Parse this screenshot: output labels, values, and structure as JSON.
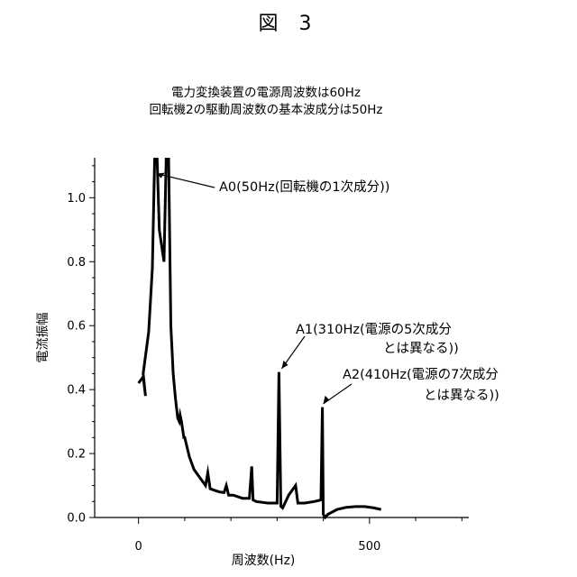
{
  "figure": {
    "title": "図 3",
    "conditions": [
      "電力変換装置の電源周波数は60Hz",
      "回転機2の駆動周波数の基本波成分は50Hz"
    ]
  },
  "chart_data": {
    "type": "line",
    "title": "",
    "xlabel": "周波数(Hz)",
    "ylabel": "電流振幅",
    "xlim": [
      -95,
      715
    ],
    "ylim": [
      0,
      1.125
    ],
    "x_ticks": [
      0,
      500
    ],
    "x_tick_labels": [
      "0",
      "500"
    ],
    "y_ticks": [
      0,
      0.2,
      0.4,
      0.6,
      0.8,
      1.0
    ],
    "y_tick_labels": [
      "0.0",
      "0.2",
      "0.4",
      "0.6",
      "0.8",
      "1.0"
    ],
    "grid": false,
    "series": [
      {
        "name": "",
        "color": "#000000",
        "x": [
          0,
          10,
          15,
          10,
          22,
          30,
          35,
          40,
          45,
          55,
          60,
          65,
          70,
          75,
          80,
          85,
          88,
          90,
          93,
          98,
          100,
          110,
          120,
          135,
          145,
          150,
          155,
          165,
          175,
          185,
          190,
          195,
          205,
          215,
          225,
          240,
          245,
          248,
          255,
          280,
          300,
          304,
          308,
          312,
          325,
          340,
          345,
          350,
          360,
          380,
          395,
          398,
          400,
          402,
          404,
          410,
          430,
          450,
          470,
          490,
          510,
          525
        ],
        "y": [
          0.42,
          0.44,
          0.38,
          0.45,
          0.58,
          0.78,
          1.13,
          1.13,
          0.9,
          0.8,
          1.13,
          1.13,
          0.6,
          0.45,
          0.37,
          0.31,
          0.3,
          0.32,
          0.3,
          0.25,
          0.25,
          0.19,
          0.15,
          0.12,
          0.1,
          0.14,
          0.09,
          0.085,
          0.08,
          0.078,
          0.1,
          0.07,
          0.07,
          0.065,
          0.06,
          0.06,
          0.16,
          0.055,
          0.05,
          0.045,
          0.045,
          0.455,
          0.035,
          0.03,
          0.07,
          0.1,
          0.045,
          0.045,
          0.045,
          0.05,
          0.055,
          0.345,
          0.01,
          0.005,
          0.0,
          0.01,
          0.025,
          0.032,
          0.034,
          0.034,
          0.03,
          0.025
        ]
      }
    ],
    "annotations": [
      {
        "text": "A0(50Hz(回転機の1次成分))",
        "x": 35,
        "y": 1.05
      },
      {
        "text": "A1(310Hz(電源の5次成分",
        "text2": "とは異なる))",
        "x": 308,
        "y": 0.46
      },
      {
        "text": "A2(410Hz(電源の7次成分",
        "text2": "とは異なる))",
        "x": 398,
        "y": 0.35
      }
    ]
  }
}
